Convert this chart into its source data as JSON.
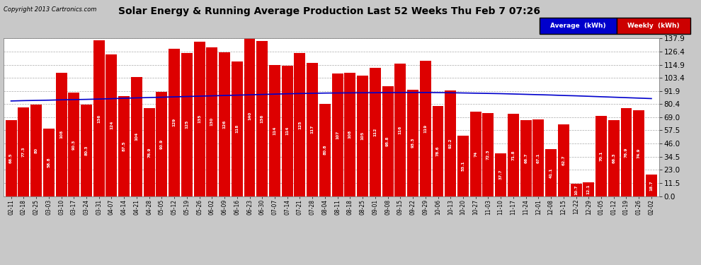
{
  "title": "Solar Energy & Running Average Production Last 52 Weeks Thu Feb 7 07:26",
  "copyright": "Copyright 2013 Cartronics.com",
  "bar_color": "#dd0000",
  "avg_line_color": "#0000cc",
  "background_color": "#c8c8c8",
  "plot_bg_color": "#ffffff",
  "grid_color": "#aaaaaa",
  "ylim": [
    0.0,
    137.9
  ],
  "yticks": [
    0.0,
    11.5,
    23.0,
    34.5,
    46.0,
    57.5,
    69.0,
    80.4,
    91.9,
    103.4,
    114.9,
    126.4,
    137.9
  ],
  "categories": [
    "02-11",
    "02-18",
    "02-25",
    "03-03",
    "03-10",
    "03-17",
    "03-24",
    "03-31",
    "04-07",
    "04-14",
    "04-21",
    "04-28",
    "05-05",
    "05-12",
    "05-19",
    "05-26",
    "06-02",
    "06-09",
    "06-16",
    "06-23",
    "06-30",
    "07-07",
    "07-14",
    "07-21",
    "07-28",
    "08-04",
    "08-11",
    "08-18",
    "08-25",
    "09-01",
    "09-08",
    "09-15",
    "09-22",
    "09-29",
    "10-06",
    "10-13",
    "10-20",
    "10-27",
    "11-03",
    "11-10",
    "11-17",
    "11-24",
    "12-01",
    "12-08",
    "12-15",
    "12-22",
    "12-29",
    "01-05",
    "01-12",
    "01-19",
    "01-26",
    "02-02"
  ],
  "weekly_values": [
    66.487,
    77.349,
    80.025,
    58.764,
    108.105,
    90.321,
    80.335,
    136.046,
    124.063,
    87.51,
    104.175,
    76.855,
    90.892,
    129.003,
    125.175,
    135.063,
    130.094,
    125.639,
    118.019,
    140.19,
    135.656,
    114.355,
    114.305,
    125.0,
    116.651,
    80.761,
    107.125,
    107.956,
    105.493,
    111.984,
    95.836,
    116.13,
    93.264,
    118.53,
    78.647,
    92.212,
    53.056,
    74.038,
    72.32,
    37.688,
    71.812,
    66.696,
    67.067,
    41.097,
    62.705,
    10.671,
    12.118,
    70.074,
    66.288,
    76.881,
    74.877,
    18.7
  ],
  "avg_values": [
    83.2,
    83.5,
    83.7,
    83.9,
    84.2,
    84.4,
    84.6,
    84.9,
    85.2,
    85.6,
    85.9,
    86.2,
    86.5,
    86.8,
    87.1,
    87.4,
    87.7,
    88.0,
    88.3,
    88.6,
    88.9,
    89.2,
    89.5,
    89.7,
    89.9,
    90.1,
    90.2,
    90.3,
    90.4,
    90.4,
    90.5,
    90.5,
    90.6,
    90.6,
    90.5,
    90.4,
    90.2,
    90.0,
    89.8,
    89.6,
    89.3,
    89.0,
    88.7,
    88.4,
    88.0,
    87.7,
    87.3,
    86.9,
    86.5,
    86.1,
    85.7,
    85.3
  ],
  "legend_avg_color": "#0000cc",
  "legend_weekly_color": "#cc0000",
  "legend_avg_label": "Average  (kWh)",
  "legend_weekly_label": "Weekly  (kWh)"
}
